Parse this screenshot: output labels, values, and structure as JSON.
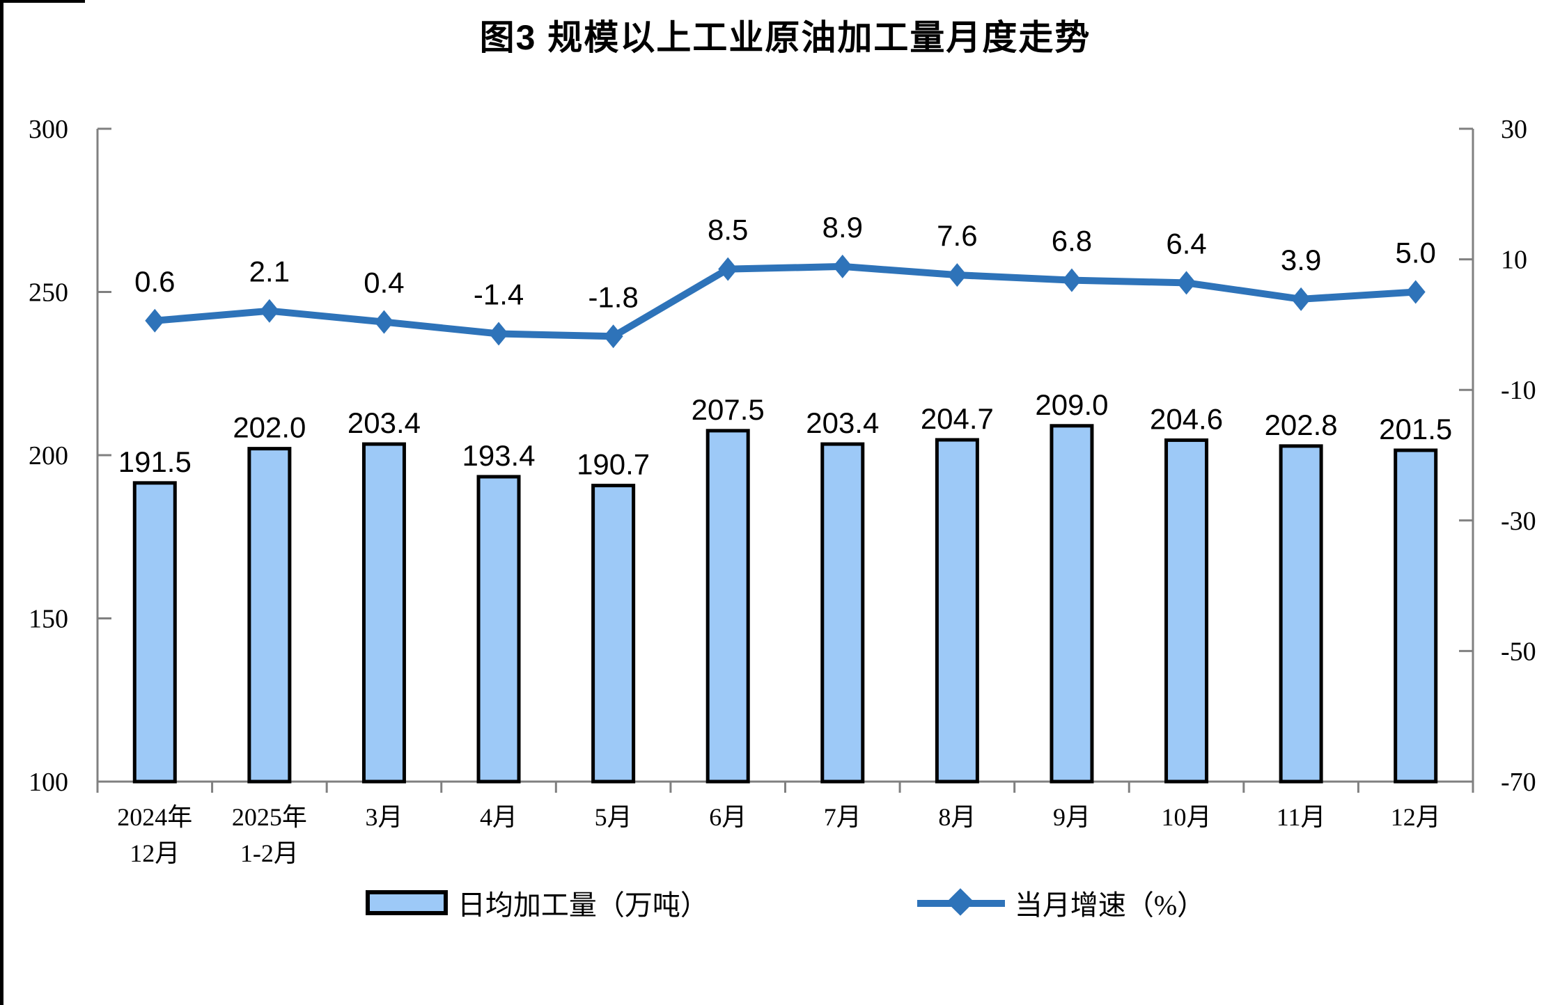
{
  "chart": {
    "title": "图3 规模以上工业原油加工量月度走势",
    "colors": {
      "bar_fill": "#9DC9F7",
      "bar_border": "#000000",
      "line": "#2E73B9",
      "axis": "#808080",
      "text": "#000000",
      "background": "#FFFFFF",
      "frame_border": "#000000"
    },
    "legend": [
      {
        "swatch": "bar",
        "label": "日均加工量（万吨）"
      },
      {
        "swatch": "line",
        "label": "当月增速（%）"
      }
    ]
  },
  "chart_data": {
    "type": "bar+line combo",
    "title": "图3 规模以上工业原油加工量月度走势",
    "categories": [
      "2024年\n12月",
      "2025年\n1-2月",
      "3月",
      "4月",
      "5月",
      "6月",
      "7月",
      "8月",
      "9月",
      "10月",
      "11月",
      "12月"
    ],
    "series": [
      {
        "name": "日均加工量（万吨）",
        "type": "bar",
        "axis": "left",
        "values": [
          191.5,
          202.0,
          203.4,
          193.4,
          190.7,
          207.5,
          203.4,
          204.7,
          209.0,
          204.6,
          202.8,
          201.5
        ]
      },
      {
        "name": "当月增速（%）",
        "type": "line",
        "axis": "right",
        "values": [
          0.6,
          2.1,
          0.4,
          -1.4,
          -1.8,
          8.5,
          8.9,
          7.6,
          6.8,
          6.4,
          3.9,
          5.0
        ]
      }
    ],
    "left_axis": {
      "min": 100,
      "max": 300,
      "ticks": [
        300,
        250,
        200,
        150,
        100
      ]
    },
    "right_axis": {
      "min": -70,
      "max": 30,
      "ticks": [
        30,
        10,
        -10,
        -30,
        -50,
        -70
      ]
    },
    "grid": false,
    "legend_position": "bottom",
    "value_labels": "one decimal, shown above bars and above line markers"
  }
}
